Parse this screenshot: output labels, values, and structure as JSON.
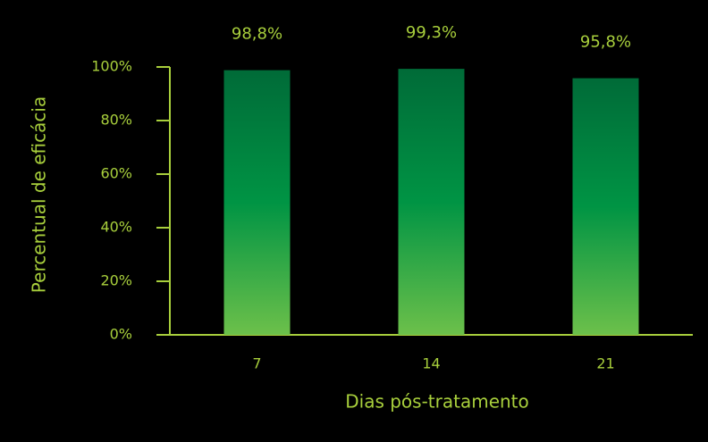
{
  "chart_data": {
    "type": "bar",
    "x_label": "Dias pós-tratamento",
    "y_label": "Percentual de eficácia",
    "categories": [
      "7",
      "14",
      "21"
    ],
    "values": [
      98.8,
      99.3,
      95.8
    ],
    "value_labels": [
      "98,8%",
      "99,3%",
      "95,8%"
    ],
    "gradient_colors": [
      "#006b38",
      "#009444",
      "#6cc04a"
    ],
    "text_color": "#a8cf3c",
    "ylim": [
      0,
      100
    ],
    "yticks": [
      {
        "value": 0,
        "label": "0%"
      },
      {
        "value": 20,
        "label": "20%"
      },
      {
        "value": 40,
        "label": "40%"
      },
      {
        "value": 60,
        "label": "60%"
      },
      {
        "value": 80,
        "label": "80%"
      },
      {
        "value": 100,
        "label": "100%"
      }
    ]
  }
}
